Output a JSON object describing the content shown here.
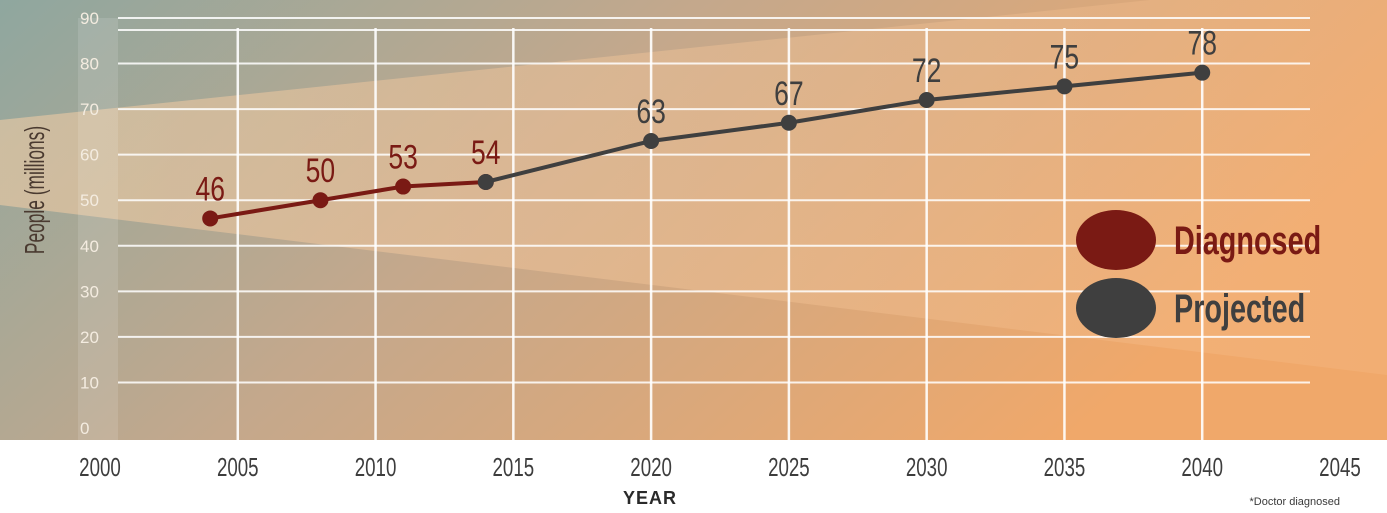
{
  "colors": {
    "diagnosed": "#7a1a14",
    "projected": "#3f3f3f",
    "teal": "#8fa79f",
    "peach": "#f0b07a",
    "grid": "#ffffff",
    "bottom_band": "#ffffff"
  },
  "chart_data": {
    "type": "line",
    "title": "",
    "xlabel": "YEAR",
    "ylabel": "People (millions)",
    "xlim": [
      2000,
      2045
    ],
    "ylim": [
      0,
      90
    ],
    "x_ticks": [
      "2000",
      "2005",
      "2010",
      "2015",
      "2020",
      "2025",
      "2030",
      "2035",
      "2040",
      "2045"
    ],
    "y_ticks": [
      "0",
      "10",
      "20",
      "30",
      "40",
      "50",
      "60",
      "70",
      "80",
      "90"
    ],
    "grid": true,
    "legend_position": "right",
    "series": [
      {
        "name": "Diagnosed",
        "color": "#7a1a14",
        "x": [
          2004,
          2008,
          2011,
          2014
        ],
        "y": [
          46,
          50,
          53,
          54
        ],
        "labels": [
          "46",
          "50",
          "53",
          "54"
        ]
      },
      {
        "name": "Projected",
        "color": "#3f3f3f",
        "x": [
          2014,
          2020,
          2025,
          2030,
          2035,
          2040
        ],
        "y": [
          54,
          63,
          67,
          72,
          75,
          78
        ],
        "labels": [
          "",
          "63",
          "67",
          "72",
          "75",
          "78"
        ]
      }
    ],
    "footnote": "*Doctor diagnosed"
  }
}
